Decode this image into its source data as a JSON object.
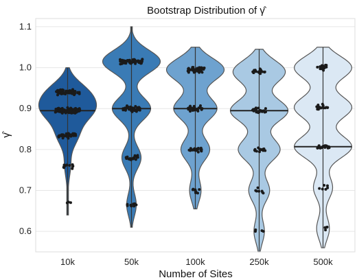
{
  "chart_data": {
    "type": "violin",
    "title": "Bootstrap Distribution of γ̂",
    "xlabel": "Number of Sites",
    "ylabel": "γ̂",
    "categories": [
      "10k",
      "50k",
      "100k",
      "250k",
      "500k"
    ],
    "ylim": [
      0.55,
      1.12
    ],
    "yticks": [
      0.6,
      0.7,
      0.8,
      0.9,
      1.0,
      1.1
    ],
    "grid": true,
    "colors": [
      "#1f5a9b",
      "#3a7bb5",
      "#6ea2cf",
      "#a9c9e3",
      "#dbe8f4"
    ],
    "series": [
      {
        "name": "10k",
        "range": [
          0.64,
          1.0
        ],
        "median": 0.895,
        "clusters": [
          {
            "y": 0.94,
            "count": 70
          },
          {
            "y": 0.895,
            "count": 90
          },
          {
            "y": 0.835,
            "count": 40
          },
          {
            "y": 0.76,
            "count": 12
          },
          {
            "y": 0.67,
            "count": 3
          }
        ]
      },
      {
        "name": "50k",
        "range": [
          0.61,
          1.1
        ],
        "median": 0.9,
        "clusters": [
          {
            "y": 1.015,
            "count": 60
          },
          {
            "y": 0.9,
            "count": 40
          },
          {
            "y": 0.78,
            "count": 20
          },
          {
            "y": 0.665,
            "count": 10
          }
        ]
      },
      {
        "name": "100k",
        "range": [
          0.655,
          1.05
        ],
        "median": 0.9,
        "clusters": [
          {
            "y": 0.995,
            "count": 40
          },
          {
            "y": 0.9,
            "count": 30
          },
          {
            "y": 0.8,
            "count": 20
          },
          {
            "y": 0.7,
            "count": 8
          }
        ]
      },
      {
        "name": "250k",
        "range": [
          0.55,
          1.045
        ],
        "median": 0.895,
        "clusters": [
          {
            "y": 0.99,
            "count": 20
          },
          {
            "y": 0.895,
            "count": 22
          },
          {
            "y": 0.8,
            "count": 16
          },
          {
            "y": 0.7,
            "count": 8
          },
          {
            "y": 0.6,
            "count": 4
          }
        ]
      },
      {
        "name": "500k",
        "range": [
          0.56,
          1.05
        ],
        "median": 0.807,
        "clusters": [
          {
            "y": 1.0,
            "count": 18
          },
          {
            "y": 0.903,
            "count": 18
          },
          {
            "y": 0.807,
            "count": 18
          },
          {
            "y": 0.707,
            "count": 6
          },
          {
            "y": 0.607,
            "count": 4
          }
        ]
      }
    ]
  }
}
